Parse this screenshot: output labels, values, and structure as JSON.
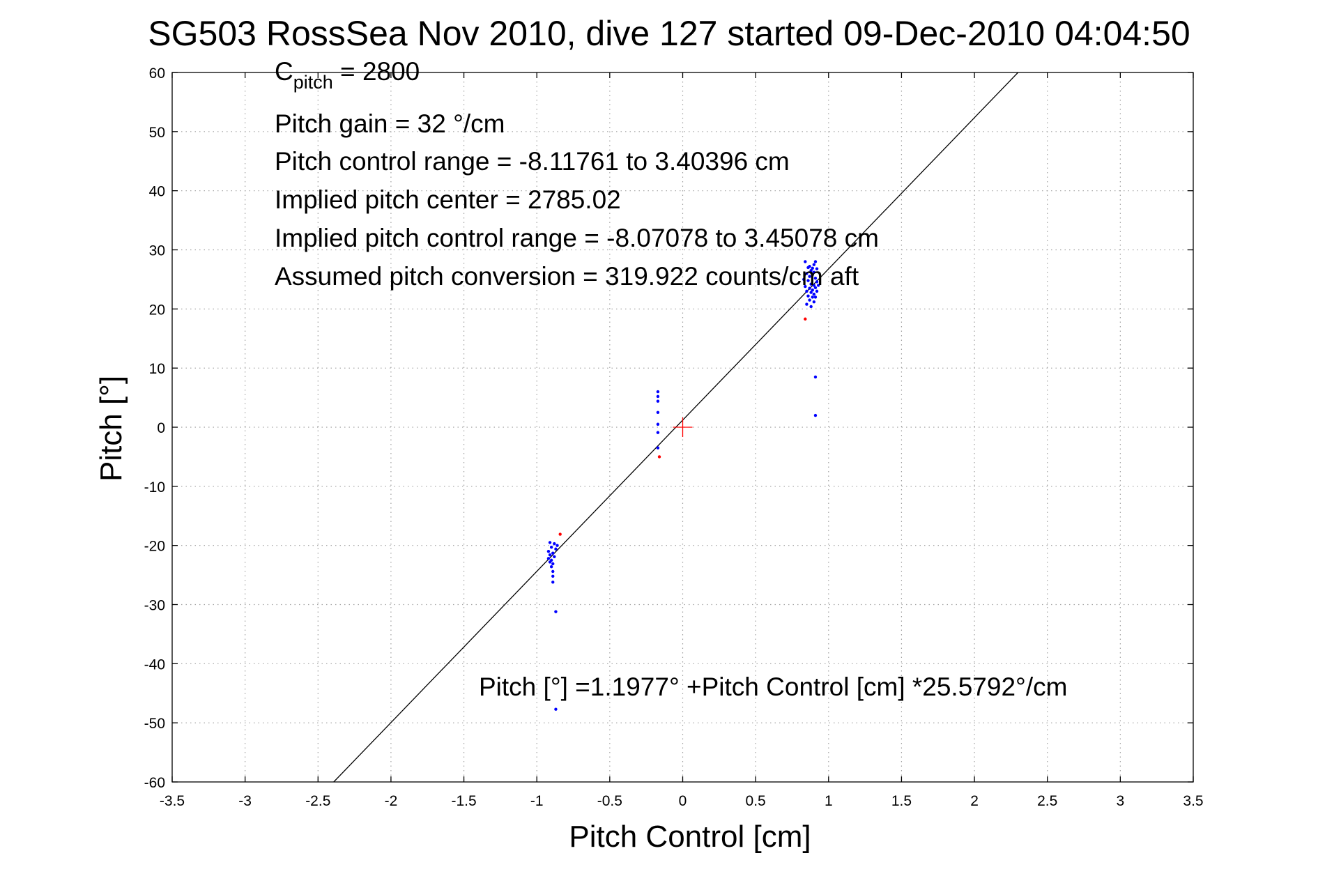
{
  "chart_data": {
    "type": "scatter",
    "title": "SG503 RossSea Nov 2010, dive 127 started 09-Dec-2010 04:04:50",
    "xlabel": "Pitch Control [cm]",
    "ylabel": "Pitch [°]",
    "xlim": [
      -3.5,
      3.5
    ],
    "ylim": [
      -60,
      60
    ],
    "xticks": [
      -3.5,
      -3,
      -2.5,
      -2,
      -1.5,
      -1,
      -0.5,
      0,
      0.5,
      1,
      1.5,
      2,
      2.5,
      3,
      3.5
    ],
    "xtick_labels": [
      "-3.5",
      "-3",
      "-2.5",
      "-2",
      "-1.5",
      "-1",
      "-0.5",
      "0",
      "0.5",
      "1",
      "1.5",
      "2",
      "2.5",
      "3",
      "3.5"
    ],
    "yticks": [
      -60,
      -50,
      -40,
      -30,
      -20,
      -10,
      0,
      10,
      20,
      30,
      40,
      50,
      60
    ],
    "ytick_labels": [
      "-60",
      "-50",
      "-40",
      "-30",
      "-20",
      "-10",
      "0",
      "10",
      "20",
      "30",
      "40",
      "50",
      "60"
    ],
    "grid": true,
    "annotations": {
      "c_pitch_main": "C",
      "c_pitch_sub": "pitch",
      "c_pitch_value": " = 2800",
      "gain": "Pitch gain = 32 °/cm",
      "range": "Pitch control range = -8.11761 to 3.40396 cm",
      "center": "Implied pitch center = 2785.02",
      "implied_range": "Implied pitch control range = -8.07078 to 3.45078 cm",
      "conversion": "Assumed pitch conversion = 319.922 counts/cm aft",
      "fit_equation": "Pitch [°] =1.1977° +Pitch Control [cm] *25.5792°/cm"
    },
    "fit_line": {
      "intercept": 1.1977,
      "slope": 25.5792
    },
    "center_marker": {
      "x": 0,
      "y": 0,
      "color": "#ff0000"
    },
    "series": [
      {
        "color": "#0000ff",
        "points": [
          [
            0.84,
            28.0
          ],
          [
            0.86,
            27.0
          ],
          [
            0.88,
            26.5
          ],
          [
            0.9,
            27.5
          ],
          [
            0.91,
            28.0
          ],
          [
            0.92,
            26.8
          ],
          [
            0.85,
            26.0
          ],
          [
            0.87,
            25.5
          ],
          [
            0.89,
            25.8
          ],
          [
            0.91,
            25.2
          ],
          [
            0.92,
            24.6
          ],
          [
            0.86,
            24.8
          ],
          [
            0.88,
            24.2
          ],
          [
            0.9,
            24.0
          ],
          [
            0.84,
            23.8
          ],
          [
            0.87,
            23.5
          ],
          [
            0.89,
            23.2
          ],
          [
            0.91,
            23.6
          ],
          [
            0.85,
            23.0
          ],
          [
            0.88,
            22.8
          ],
          [
            0.9,
            22.5
          ],
          [
            0.92,
            23.0
          ],
          [
            0.86,
            22.2
          ],
          [
            0.89,
            22.0
          ],
          [
            0.87,
            21.5
          ],
          [
            0.9,
            21.2
          ],
          [
            0.85,
            20.8
          ],
          [
            0.88,
            20.4
          ],
          [
            0.91,
            22.0
          ],
          [
            0.93,
            24.0
          ],
          [
            0.83,
            25.0
          ],
          [
            0.9,
            26.2
          ],
          [
            0.87,
            27.2
          ],
          [
            0.89,
            26.9
          ],
          [
            0.91,
            8.5
          ],
          [
            0.91,
            2.0
          ],
          [
            -0.17,
            6.0
          ],
          [
            -0.17,
            5.2
          ],
          [
            -0.17,
            4.4
          ],
          [
            -0.17,
            2.5
          ],
          [
            -0.17,
            0.5
          ],
          [
            -0.17,
            -0.9
          ],
          [
            -0.17,
            -3.5
          ],
          [
            -0.91,
            -19.5
          ],
          [
            -0.88,
            -19.7
          ],
          [
            -0.86,
            -20.0
          ],
          [
            -0.9,
            -20.3
          ],
          [
            -0.87,
            -20.6
          ],
          [
            -0.92,
            -21.0
          ],
          [
            -0.89,
            -21.3
          ],
          [
            -0.91,
            -21.6
          ],
          [
            -0.88,
            -21.9
          ],
          [
            -0.92,
            -22.2
          ],
          [
            -0.9,
            -22.5
          ],
          [
            -0.91,
            -22.8
          ],
          [
            -0.89,
            -23.1
          ],
          [
            -0.9,
            -23.6
          ],
          [
            -0.89,
            -24.4
          ],
          [
            -0.89,
            -25.2
          ],
          [
            -0.89,
            -26.2
          ],
          [
            -0.87,
            -31.2
          ],
          [
            -0.87,
            -47.7
          ]
        ]
      },
      {
        "color": "#ff0000",
        "points": [
          [
            0.84,
            18.3
          ],
          [
            -0.16,
            -5.0
          ],
          [
            -0.84,
            -18.1
          ]
        ]
      }
    ]
  }
}
